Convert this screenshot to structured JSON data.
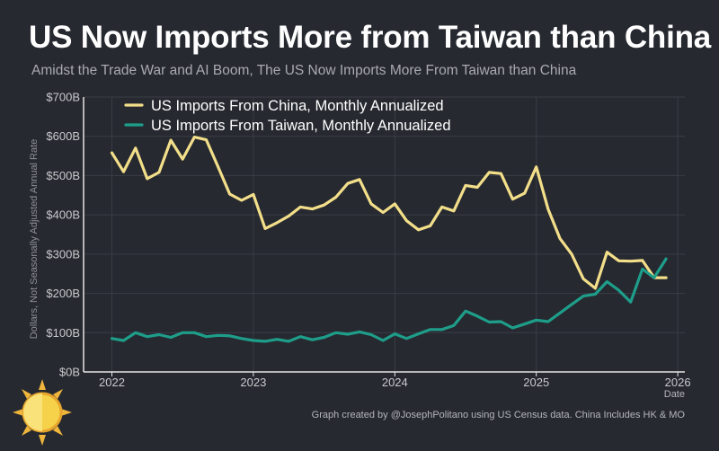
{
  "header": {
    "title": "US Now Imports More from Taiwan than China",
    "subtitle": "Amidst the Trade War and AI Boom, The US Now Imports More From Taiwan than China"
  },
  "footer": {
    "credit": "Graph created by @JosephPolitano using US Census data. China Includes HK & MO"
  },
  "logo": {
    "icon": "sun-icon"
  },
  "colors": {
    "background": "#262930",
    "grid": "#3a3d45",
    "axis": "#e6e6e6",
    "china": "#f3df8a",
    "taiwan": "#1e9e8a"
  },
  "chart_data": {
    "type": "line",
    "xlabel": "Date",
    "ylabel": "Dollars, Not Seasonally Adjusted Annual Rate",
    "x_ticks": [
      "2022",
      "2023",
      "2024",
      "2025",
      "2026"
    ],
    "y_ticks": [
      "$0B",
      "$100B",
      "$200B",
      "$300B",
      "$400B",
      "$500B",
      "$600B",
      "$700B"
    ],
    "ylim": [
      0,
      700
    ],
    "xlim": [
      2021.8,
      2026.05
    ],
    "legend_position": "top-left",
    "grid": true,
    "series": [
      {
        "name": "US Imports From China, Monthly Annualized",
        "color": "#f3df8a",
        "x": [
          2022.0,
          2022.083,
          2022.167,
          2022.25,
          2022.333,
          2022.417,
          2022.5,
          2022.583,
          2022.667,
          2022.75,
          2022.833,
          2022.917,
          2023.0,
          2023.083,
          2023.167,
          2023.25,
          2023.333,
          2023.417,
          2023.5,
          2023.583,
          2023.667,
          2023.75,
          2023.833,
          2023.917,
          2024.0,
          2024.083,
          2024.167,
          2024.25,
          2024.333,
          2024.417,
          2024.5,
          2024.583,
          2024.667,
          2024.75,
          2024.833,
          2024.917,
          2025.0,
          2025.083,
          2025.167,
          2025.25,
          2025.333,
          2025.417,
          2025.5,
          2025.583,
          2025.667,
          2025.75,
          2025.833,
          2025.917
        ],
        "values": [
          558,
          510,
          570,
          492,
          508,
          590,
          542,
          598,
          591,
          523,
          453,
          437,
          452,
          365,
          380,
          397,
          420,
          415,
          425,
          445,
          480,
          490,
          428,
          406,
          428,
          385,
          362,
          372,
          420,
          410,
          475,
          470,
          508,
          505,
          440,
          455,
          522,
          415,
          340,
          300,
          237,
          213,
          305,
          283,
          282,
          284,
          240,
          240
        ]
      },
      {
        "name": "US Imports From Taiwan, Monthly Annualized",
        "color": "#1e9e8a",
        "x": [
          2022.0,
          2022.083,
          2022.167,
          2022.25,
          2022.333,
          2022.417,
          2022.5,
          2022.583,
          2022.667,
          2022.75,
          2022.833,
          2022.917,
          2023.0,
          2023.083,
          2023.167,
          2023.25,
          2023.333,
          2023.417,
          2023.5,
          2023.583,
          2023.667,
          2023.75,
          2023.833,
          2023.917,
          2024.0,
          2024.083,
          2024.167,
          2024.25,
          2024.333,
          2024.417,
          2024.5,
          2024.583,
          2024.667,
          2024.75,
          2024.833,
          2024.917,
          2025.0,
          2025.083,
          2025.167,
          2025.25,
          2025.333,
          2025.417,
          2025.5,
          2025.583,
          2025.667,
          2025.75,
          2025.833,
          2025.917
        ],
        "values": [
          85,
          80,
          100,
          90,
          95,
          88,
          100,
          100,
          90,
          93,
          92,
          85,
          80,
          78,
          83,
          78,
          90,
          82,
          88,
          100,
          96,
          102,
          95,
          80,
          97,
          85,
          97,
          108,
          108,
          118,
          155,
          142,
          127,
          128,
          112,
          122,
          132,
          128,
          150,
          172,
          193,
          198,
          230,
          208,
          178,
          262,
          240,
          288
        ]
      }
    ]
  }
}
